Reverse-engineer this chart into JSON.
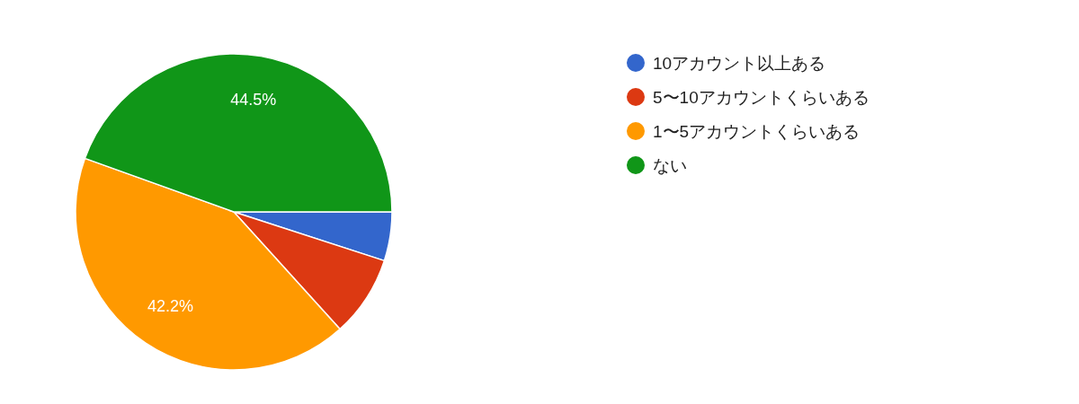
{
  "chart_data": {
    "type": "pie",
    "categories": [
      "10アカウント以上ある",
      "5〜10アカウントくらいある",
      "1〜5アカウントくらいある",
      "ない"
    ],
    "values": [
      5.0,
      8.3,
      42.2,
      44.5
    ],
    "colors": [
      "#3366cc",
      "#dc3912",
      "#ff9900",
      "#109618"
    ],
    "value_labels": [
      null,
      null,
      "42.2%",
      "44.5%"
    ],
    "legend": "right"
  }
}
